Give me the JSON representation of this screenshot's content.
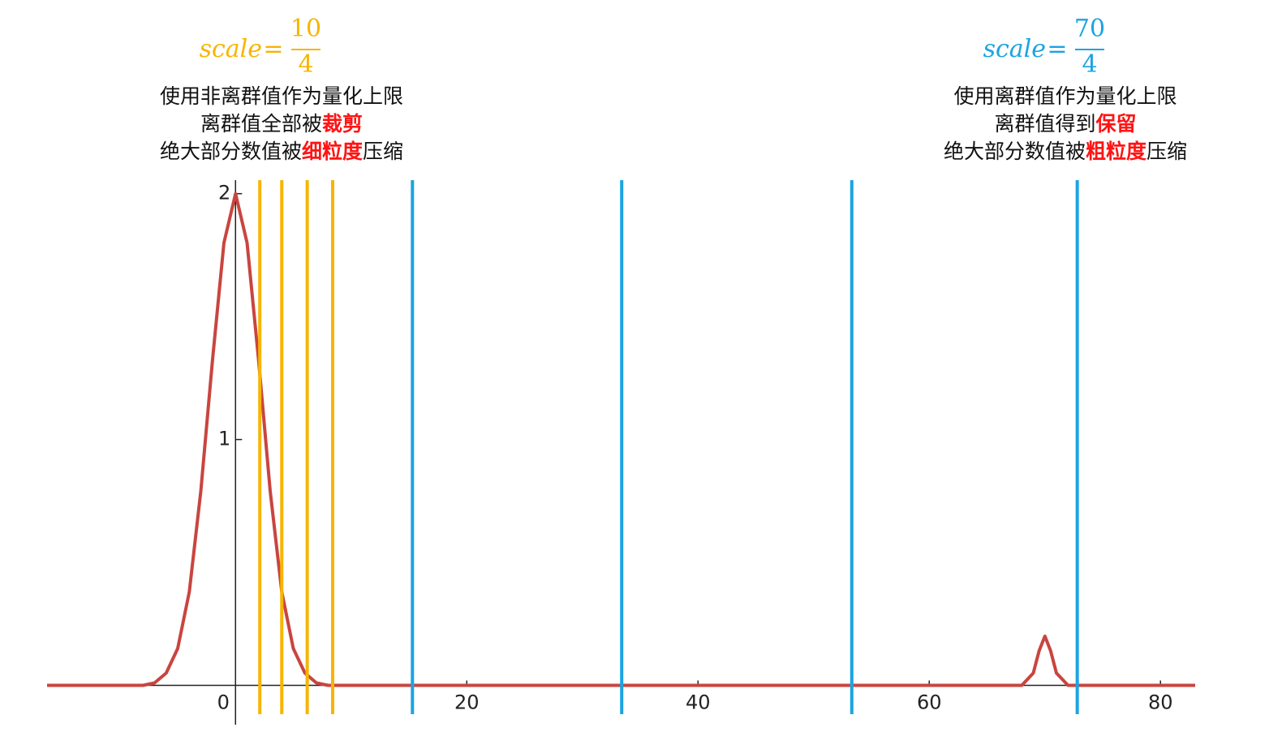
{
  "chart_data": {
    "type": "line",
    "xlim": [
      -16.3,
      83
    ],
    "ylim": [
      -0.16,
      2.055
    ],
    "xticks": [
      0,
      20,
      40,
      60,
      80
    ],
    "yticks": [
      1,
      2
    ],
    "series": [
      {
        "color": "#c9453f",
        "x": [
          -16.3,
          -8,
          -7,
          -6,
          -5,
          -4,
          -3,
          -2,
          -1,
          0,
          1,
          2,
          3,
          4,
          5,
          6,
          7,
          8,
          10,
          20,
          40,
          60,
          66,
          68,
          69,
          69.5,
          70,
          70.5,
          71,
          72,
          74,
          83
        ],
        "values": [
          0,
          0,
          0.01,
          0.05,
          0.15,
          0.38,
          0.79,
          1.32,
          1.8,
          2,
          1.8,
          1.32,
          0.79,
          0.38,
          0.15,
          0.05,
          0.01,
          0,
          0,
          0,
          0,
          0,
          0,
          0,
          0.05,
          0.14,
          0.2,
          0.14,
          0.05,
          0,
          0,
          0
        ]
      }
    ],
    "vlines": [
      {
        "color": "#f7b500",
        "x": [
          2.1,
          4.0,
          6.2,
          8.4
        ]
      },
      {
        "color": "#1ba4e2",
        "x": [
          15.3,
          33.4,
          53.3,
          72.8
        ]
      }
    ],
    "highlight_color": "#ff1414",
    "annotations": [
      {
        "color": "#f7b500",
        "lhs": "scale",
        "eq": "=",
        "numerator": "10",
        "denominator": "4",
        "lines": [
          [
            {
              "text": "使用非离群值作为量化上限"
            }
          ],
          [
            {
              "text": "离群值全部被"
            },
            {
              "text": "裁剪",
              "highlight": true
            }
          ],
          [
            {
              "text": "绝大部分数值被"
            },
            {
              "text": "细粒度",
              "highlight": true
            },
            {
              "text": "压缩"
            }
          ]
        ]
      },
      {
        "color": "#1ba4e2",
        "lhs": "scale",
        "eq": "=",
        "numerator": "70",
        "denominator": "4",
        "lines": [
          [
            {
              "text": "使用离群值作为量化上限"
            }
          ],
          [
            {
              "text": "离群值得到"
            },
            {
              "text": "保留",
              "highlight": true
            }
          ],
          [
            {
              "text": "绝大部分数值被"
            },
            {
              "text": "粗粒度",
              "highlight": true
            },
            {
              "text": "压缩"
            }
          ]
        ]
      }
    ]
  }
}
